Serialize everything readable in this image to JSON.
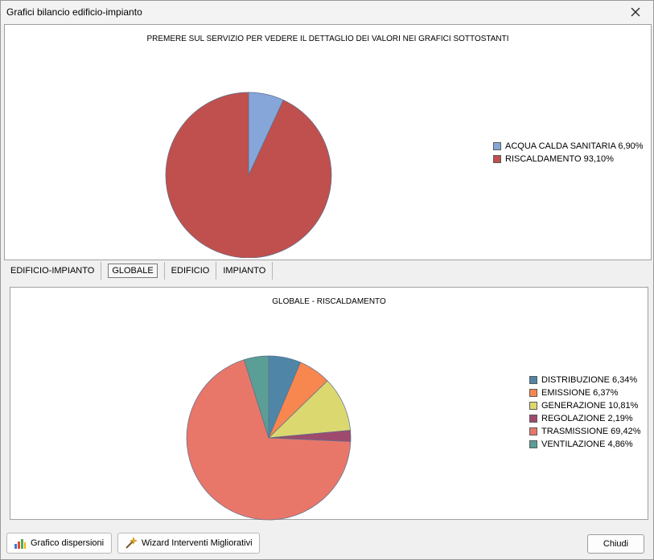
{
  "window": {
    "title": "Grafici bilancio edificio-impianto"
  },
  "top_chart": {
    "title": "PREMERE SUL SERVIZIO PER VEDERE IL DETTAGLIO DEI VALORI NEI GRAFICI SOTTOSTANTI",
    "legend": [
      "ACQUA CALDA SANITARIA 6,90%",
      "RISCALDAMENTO 93,10%"
    ]
  },
  "tabs": [
    "EDIFICIO-IMPIANTO",
    "GLOBALE",
    "EDIFICIO",
    "IMPIANTO"
  ],
  "active_tab": "GLOBALE",
  "bottom_chart": {
    "title": "GLOBALE - RISCALDAMENTO",
    "legend": [
      "DISTRIBUZIONE 6,34%",
      "EMISSIONE 6,37%",
      "GENERAZIONE 10,81%",
      "REGOLAZIONE 2,19%",
      "TRASMISSIONE 69,42%",
      "VENTILAZIONE 4,86%"
    ]
  },
  "buttons": {
    "dispersioni": "Grafico dispersioni",
    "wizard": "Wizard Interventi Migliorativi",
    "close": "Chiudi"
  },
  "chart_data": [
    {
      "type": "pie",
      "title": "PREMERE SUL SERVIZIO PER VEDERE IL DETTAGLIO DEI VALORI NEI GRAFICI SOTTOSTANTI",
      "categories": [
        "ACQUA CALDA SANITARIA",
        "RISCALDAMENTO"
      ],
      "values": [
        6.9,
        93.1
      ],
      "colors": [
        "#86a6da",
        "#c0504d"
      ],
      "legend_position": "right"
    },
    {
      "type": "pie",
      "title": "GLOBALE - RISCALDAMENTO",
      "categories": [
        "DISTRIBUZIONE",
        "EMISSIONE",
        "GENERAZIONE",
        "REGOLAZIONE",
        "TRASMISSIONE",
        "VENTILAZIONE"
      ],
      "values": [
        6.34,
        6.37,
        10.81,
        2.19,
        69.42,
        4.86
      ],
      "colors": [
        "#4f86a8",
        "#f7874f",
        "#dcd870",
        "#9e4a6e",
        "#e8776a",
        "#5a9e96"
      ],
      "legend_position": "right"
    }
  ]
}
